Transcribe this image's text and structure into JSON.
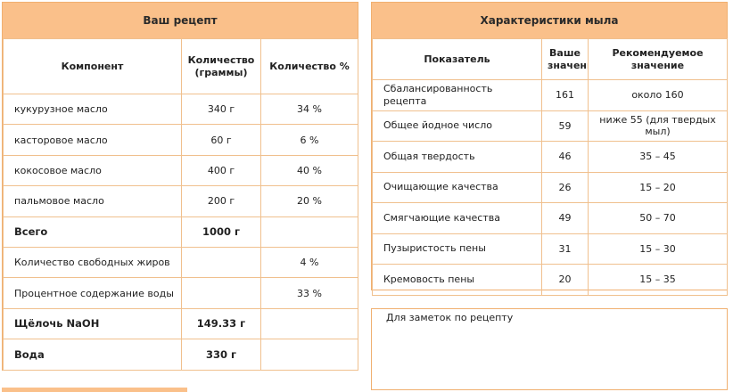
{
  "recipe": {
    "title": "Ваш рецепт",
    "headers": {
      "component": "Компонент",
      "grams": "Количество (граммы)",
      "percent": "Количество %"
    },
    "rows": [
      {
        "name": "кукурузное масло",
        "grams": "340 г",
        "percent": "34 %"
      },
      {
        "name": "касторовое масло",
        "grams": "60 г",
        "percent": "6 %"
      },
      {
        "name": "кокосовое масло",
        "grams": "400 г",
        "percent": "40 %"
      },
      {
        "name": "пальмовое масло",
        "grams": "200 г",
        "percent": "20 %"
      }
    ],
    "total_label": "Всего",
    "total_value": "1000 г",
    "free_fat_label": "Количество свободных жиров",
    "free_fat_value": "4 %",
    "water_percent_label": "Процентное содержание воды",
    "water_percent_value": "33 %",
    "lye_label": "Щёлочь NaOH",
    "lye_value": "149.33 г",
    "water_label": "Вода",
    "water_value": "330 г"
  },
  "soap": {
    "title": "Характеристики мыла",
    "headers": {
      "indicator": "Показатель",
      "your_value": "Ваше значение",
      "recommended": "Рекомендуемое значение"
    },
    "rows": [
      {
        "name": "Сбалансированность рецепта",
        "value": "161",
        "recommended": "около 160"
      },
      {
        "name": "Общее йодное число",
        "value": "59",
        "recommended": "ниже 55 (для твердых мыл)"
      },
      {
        "name": "Общая твердость",
        "value": "46",
        "recommended": "35 – 45"
      },
      {
        "name": "Очищающие качества",
        "value": "26",
        "recommended": "15 – 20"
      },
      {
        "name": "Смягчающие качества",
        "value": "49",
        "recommended": "50 – 70"
      },
      {
        "name": "Пузыристость пены",
        "value": "31",
        "recommended": "15 – 30"
      },
      {
        "name": "Кремовость пены",
        "value": "20",
        "recommended": "15 – 35"
      }
    ]
  },
  "notes": {
    "label": "Для заметок по рецепту"
  }
}
